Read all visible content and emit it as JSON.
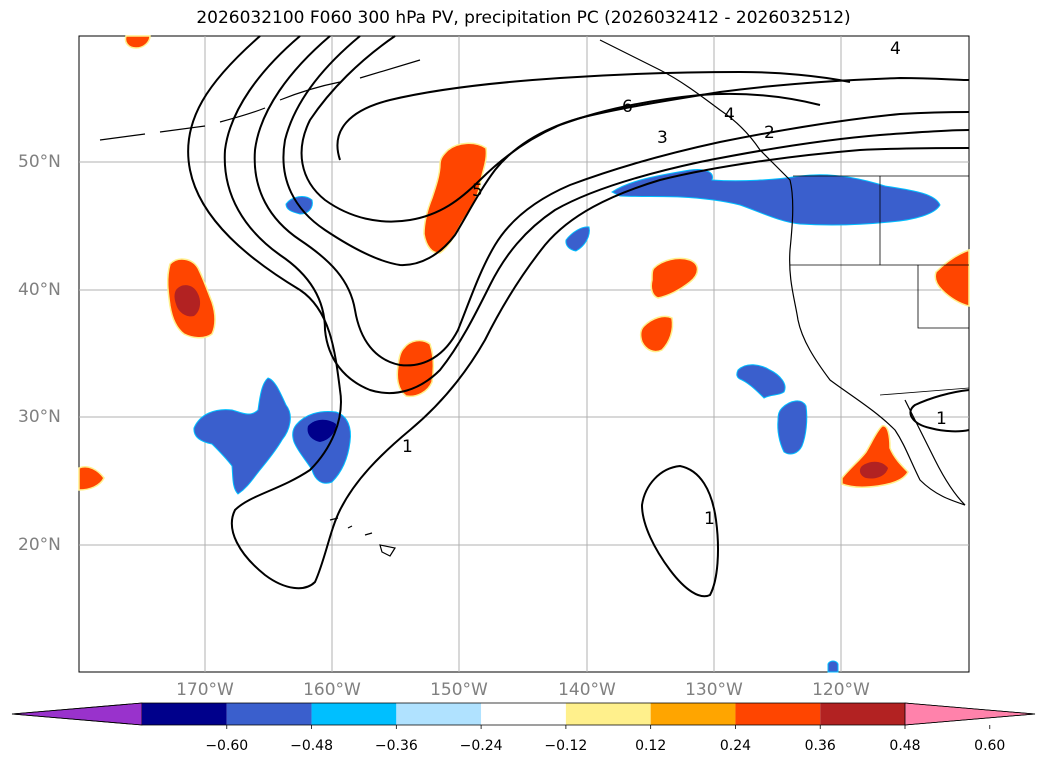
{
  "title": "2026032100 F060 300 hPa PV, precipitation PC (2026032412 - 2026032512)",
  "lat_labels": [
    "50°N",
    "40°N",
    "30°N",
    "20°N"
  ],
  "lon_labels": [
    "170°W",
    "160°W",
    "150°W",
    "140°W",
    "130°W",
    "120°W"
  ],
  "contour_labels": [
    "4",
    "6",
    "3",
    "4",
    "2",
    "1",
    "1",
    "1",
    "5"
  ],
  "colorbar": {
    "ticks": [
      "−0.60",
      "−0.48",
      "−0.36",
      "−0.24",
      "−0.12",
      "0.12",
      "0.24",
      "0.36",
      "0.48",
      "0.60"
    ],
    "colors": [
      "#9932cc",
      "#00008b",
      "#3a5fcd",
      "#00bfff",
      "#b0e2ff",
      "#ffffff",
      "#fff08c",
      "#ffa500",
      "#ff4500",
      "#b22222",
      "#ff82ab"
    ]
  },
  "chart_data": {
    "type": "heatmap",
    "title": "2026032100 F060 300 hPa PV, precipitation PC (2026032412 - 2026032512)",
    "lon_range": [
      -180,
      -110
    ],
    "lat_range": [
      10,
      60
    ],
    "grid": true,
    "variables": [
      "300 hPa PV (contours)",
      "precipitation PC (shading)"
    ],
    "pv_contour_levels": [
      1,
      2,
      3,
      4,
      5,
      6
    ],
    "precip_pc_levels": [
      -0.6,
      -0.48,
      -0.36,
      -0.24,
      -0.12,
      0.12,
      0.24,
      0.36,
      0.48,
      0.6
    ]
  }
}
